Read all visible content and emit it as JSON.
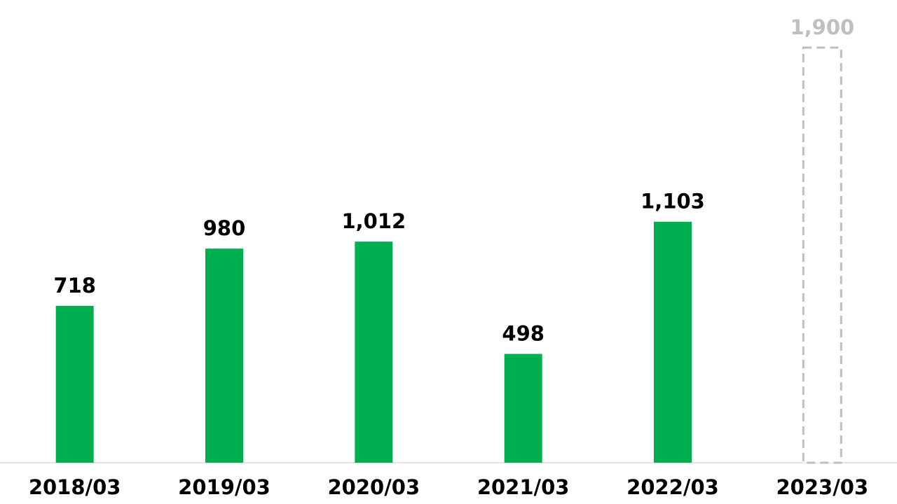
{
  "chart_data": {
    "type": "bar",
    "categories": [
      "2018/03",
      "2019/03",
      "2020/03",
      "2021/03",
      "2022/03",
      "2023/03"
    ],
    "values": [
      718,
      980,
      1012,
      498,
      1103,
      1900
    ],
    "value_labels": [
      "718",
      "980",
      "1,012",
      "498",
      "1,103",
      "1,900"
    ],
    "colors": [
      "#00b050",
      "#00b050",
      "#00b050",
      "#00b050",
      "#00b050",
      "#bfbfbf"
    ],
    "dashed": [
      false,
      false,
      false,
      false,
      false,
      true
    ]
  }
}
